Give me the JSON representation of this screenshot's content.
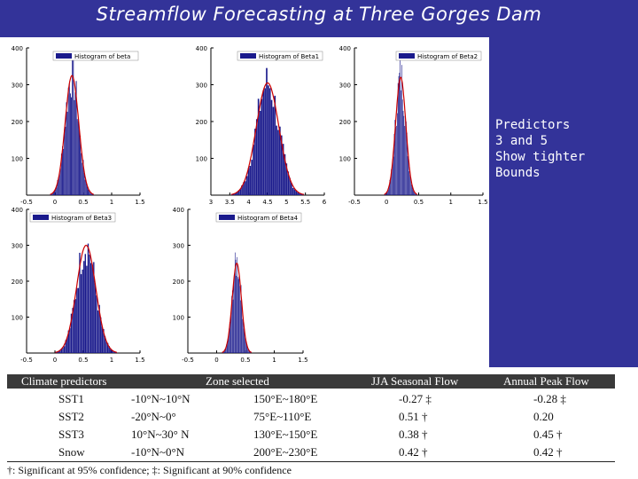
{
  "slide": {
    "title": "Streamflow Forecasting at Three Gorges Dam",
    "side_note": [
      "Predictors",
      "3 and 5",
      "Show tighter",
      "Bounds"
    ]
  },
  "chart_data": [
    {
      "type": "bar",
      "title": "",
      "legend": "Histogram of beta",
      "legend_placement": "top-right",
      "x_ticks": [
        "-0.5",
        "0",
        "0.5",
        "1",
        "1.5"
      ],
      "y_ticks": [
        "100",
        "200",
        "300",
        "400"
      ],
      "xlim": [
        -0.5,
        1.5
      ],
      "ylim": [
        0,
        400
      ],
      "center": 0.3,
      "spread": 0.12,
      "peak": 325,
      "bar_color": "#1a1a8c",
      "fit_color": "#cc0000"
    },
    {
      "type": "bar",
      "title": "",
      "legend": "Histogram of Beta1",
      "legend_placement": "top-right",
      "x_ticks": [
        "3",
        "3.5",
        "4",
        "4.5",
        "5",
        "5.5",
        "6"
      ],
      "y_ticks": [
        "100",
        "200",
        "300",
        "400"
      ],
      "xlim": [
        3,
        6
      ],
      "ylim": [
        0,
        400
      ],
      "center": 4.5,
      "spread": 0.3,
      "peak": 305,
      "bar_color": "#1a1a8c",
      "fit_color": "#cc0000"
    },
    {
      "type": "bar",
      "title": "",
      "legend": "Histogram of Beta2",
      "legend_placement": "top-right",
      "x_ticks": [
        "-0.5",
        "0",
        "0.5",
        "1",
        "1.5"
      ],
      "y_ticks": [
        "100",
        "200",
        "300",
        "400"
      ],
      "xlim": [
        -0.5,
        1.5
      ],
      "ylim": [
        0,
        400
      ],
      "center": 0.22,
      "spread": 0.08,
      "peak": 320,
      "bar_color": "#1a1a8c",
      "fit_color": "#cc0000"
    },
    {
      "type": "bar",
      "title": "",
      "legend": "Histogram of Beta3",
      "legend_placement": "top-left",
      "x_ticks": [
        "-0.5",
        "0",
        "0.5",
        "1",
        "1.5"
      ],
      "y_ticks": [
        "100",
        "200",
        "300",
        "400"
      ],
      "xlim": [
        -0.5,
        1.5
      ],
      "ylim": [
        0,
        400
      ],
      "center": 0.55,
      "spread": 0.17,
      "peak": 300,
      "bar_color": "#1a1a8c",
      "fit_color": "#cc0000"
    },
    {
      "type": "bar",
      "title": "",
      "legend": "Histogram of Beta4",
      "legend_placement": "top-right",
      "x_ticks": [
        "-0.5",
        "0",
        "0.5",
        "1",
        "1.5"
      ],
      "y_ticks": [
        "100",
        "200",
        "300",
        "400"
      ],
      "xlim": [
        -0.5,
        1.5
      ],
      "ylim": [
        0,
        400
      ],
      "center": 0.35,
      "spread": 0.08,
      "peak": 250,
      "bar_color": "#1a1a8c",
      "fit_color": "#cc0000"
    }
  ],
  "table": {
    "headers": [
      "Climate predictors",
      "Zone selected",
      "JJA Seasonal Flow",
      "Annual Peak Flow"
    ],
    "rows": [
      [
        "SST1",
        "-10°N~10°N",
        "150°E~180°E",
        "-0.27 ‡",
        "-0.28 ‡"
      ],
      [
        "SST2",
        "-20°N~0°",
        "75°E~110°E",
        "0.51 †",
        "0.20"
      ],
      [
        "SST3",
        "10°N~30° N",
        "130°E~150°E",
        "0.38 †",
        "0.45 †"
      ],
      [
        "Snow",
        "-10°N~0°N",
        "200°E~230°E",
        "0.42 †",
        "0.42 †"
      ]
    ],
    "footnote": "†: Significant at 95% confidence; ‡: Significant at 90% confidence"
  }
}
